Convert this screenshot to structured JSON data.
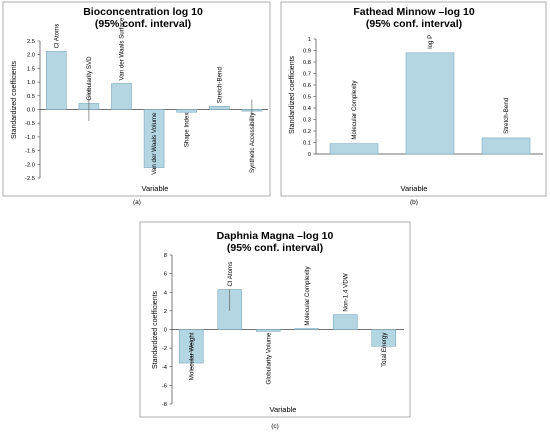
{
  "chart_data": [
    {
      "type": "bar",
      "title": "Bioconcentration log 10",
      "subtitle": "(95% conf. interval)",
      "xlabel": "Variable",
      "ylabel": "Standardized coefficients",
      "panel_label": "(a)",
      "ylim": [
        -2.5,
        2.5
      ],
      "yticks": [
        "2.5",
        "2.0",
        "1.5",
        "1.0",
        "0.5",
        "0.0",
        "-0.5",
        "-1.0",
        "-1.5",
        "-2.0",
        "-2.5"
      ],
      "ytick_values": [
        2.5,
        2.0,
        1.5,
        1.0,
        0.5,
        0.0,
        -0.5,
        -1.0,
        -1.5,
        -2.0,
        -2.5
      ],
      "categories": [
        "Cl Atoms",
        "Globularity SVD",
        "Van der Waals Surface",
        "Van der Waals Volume",
        "Shape Index",
        "Stretch-Bend",
        "Synthetic Accessibility"
      ],
      "values": [
        2.12,
        0.22,
        0.95,
        -2.12,
        -0.1,
        0.12,
        -0.06
      ],
      "ci_low": [
        2.12,
        -0.42,
        0.95,
        -2.12,
        -0.1,
        0.12,
        -0.18
      ],
      "ci_high": [
        2.12,
        0.85,
        0.95,
        -2.12,
        -0.1,
        0.12,
        0.37
      ],
      "bar_color": "#b4d5e2",
      "bar_stroke": "#7fa9bf",
      "grid": false,
      "legend": "none"
    },
    {
      "type": "bar",
      "title": "Fathead Minnow –log 10",
      "subtitle": "(95% conf. interval)",
      "xlabel": "Variable",
      "ylabel": "Standardized coefficients",
      "panel_label": "(b)",
      "ylim": [
        0,
        1
      ],
      "yticks": [
        "1",
        "0.9",
        "0.8",
        "0.7",
        "0.6",
        "0.5",
        "0.4",
        "0.3",
        "0.2",
        "0.1",
        "0"
      ],
      "ytick_values": [
        1,
        0.9,
        0.8,
        0.7,
        0.6,
        0.5,
        0.4,
        0.3,
        0.2,
        0.1,
        0
      ],
      "categories": [
        "Molecular Complexity",
        "log P",
        "Stretch-Bend"
      ],
      "values": [
        0.09,
        0.88,
        0.14
      ],
      "bar_color": "#b4d5e2",
      "bar_stroke": "#7fa9bf",
      "grid": false,
      "legend": "none"
    },
    {
      "type": "bar",
      "title": "Daphnia Magna –log 10",
      "subtitle": "(95% conf. interval)",
      "xlabel": "Variable",
      "ylabel": "Standardized coefficients",
      "panel_label": "(c)",
      "ylim": [
        -8,
        8
      ],
      "yticks": [
        "8",
        "6",
        "4",
        "2",
        "0",
        "-2",
        "-4",
        "-6",
        "-8"
      ],
      "ytick_values": [
        8,
        6,
        4,
        2,
        0,
        -2,
        -4,
        -6,
        -8
      ],
      "categories": [
        "Molecular Weight",
        "Cl Atoms",
        "Globularity Volume",
        "Molecular Complexity",
        "Non-1,4 VDW",
        "Total Energy"
      ],
      "values": [
        -3.6,
        4.3,
        -0.2,
        0.1,
        1.6,
        -1.8
      ],
      "ci_low": [
        -4.2,
        2.0,
        -0.2,
        0.1,
        1.6,
        -1.8
      ],
      "ci_high": [
        -1.3,
        4.3,
        -0.2,
        0.1,
        1.6,
        -1.8
      ],
      "bar_color": "#b4d5e2",
      "bar_stroke": "#7fa9bf",
      "grid": false,
      "legend": "none"
    }
  ]
}
